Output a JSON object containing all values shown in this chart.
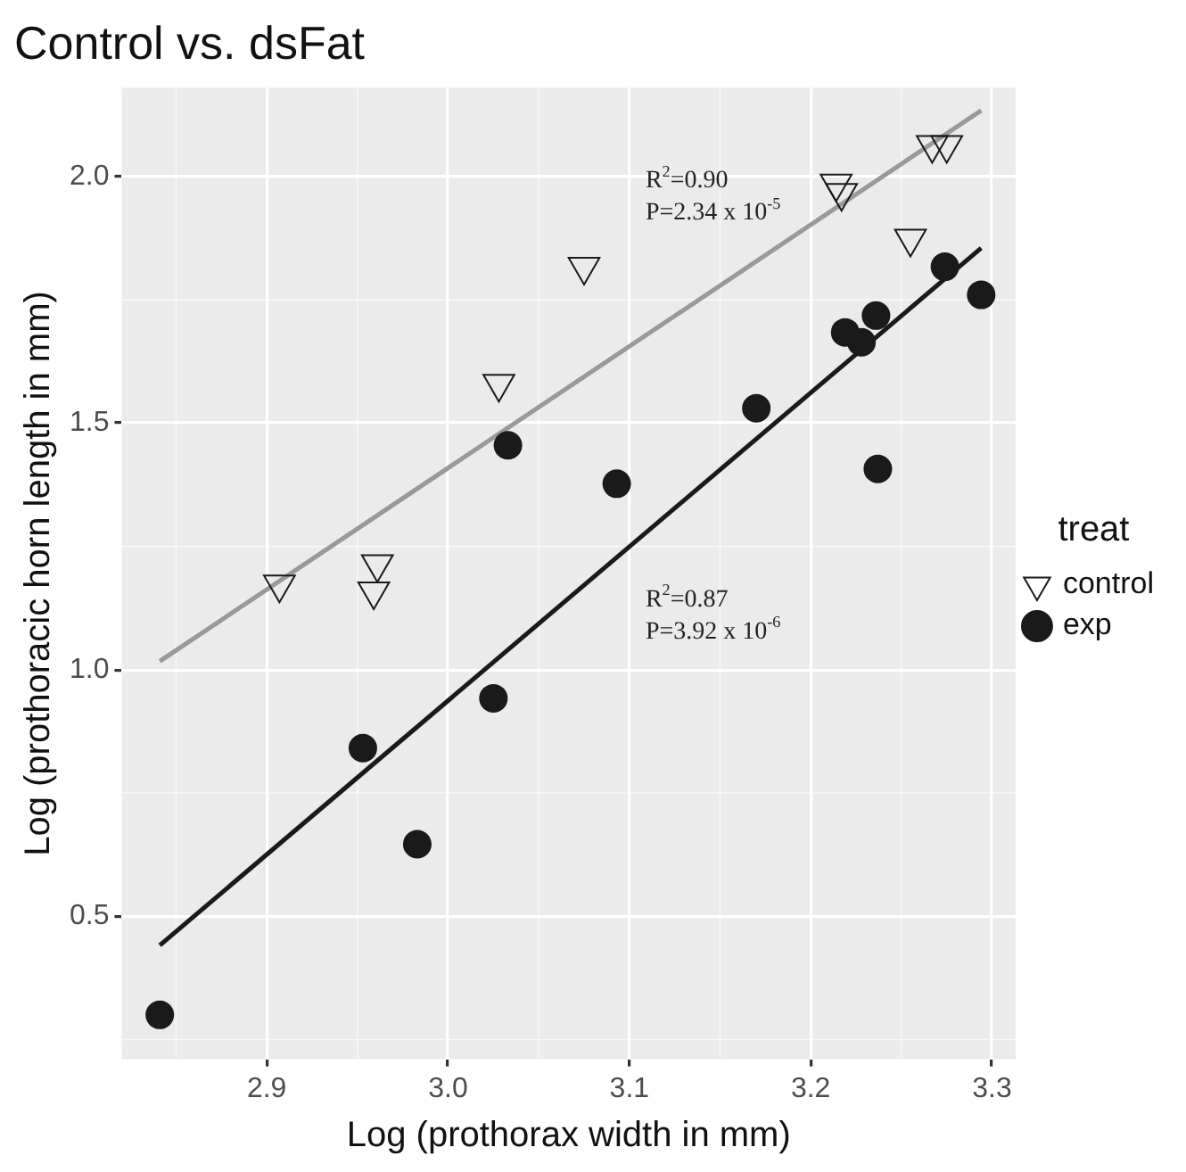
{
  "chart_data": {
    "type": "scatter",
    "title": "Control vs. dsFat",
    "xlabel": "Log (prothorax width in mm)",
    "ylabel": "Log (prothoracic horn length in mm)",
    "legend_title": "treat",
    "legend": "right",
    "grid": true,
    "xlim": [
      2.82,
      3.313
    ],
    "xticks": [
      2.9,
      {
        "value": 3,
        "label": "3.0"
      },
      3.1,
      3.2,
      3.3
    ],
    "ylim": [
      0.21,
      2.18
    ],
    "yticks": [
      0.5,
      {
        "value": 1,
        "label": "1.0"
      },
      1.5,
      {
        "value": 2,
        "label": "2.0"
      }
    ],
    "series": [
      {
        "name": "control",
        "marker": "triangle",
        "color": "#1a1a1a",
        "x": [
          3.075,
          3.028,
          3.214,
          3.217,
          3.255,
          3.267,
          3.275,
          2.961,
          2.907,
          2.959
        ],
        "values": [
          1.817,
          1.58,
          1.986,
          1.967,
          1.874,
          2.064,
          2.064,
          1.214,
          1.173,
          1.159
        ]
      },
      {
        "name": "exp",
        "marker": "circle",
        "color": "#1a1a1a",
        "x": [
          3.274,
          3.294,
          3.236,
          3.219,
          3.228,
          3.17,
          3.237,
          3.033,
          3.093,
          3.025,
          2.953,
          2.983,
          2.841
        ],
        "values": [
          1.817,
          1.76,
          1.718,
          1.684,
          1.664,
          1.53,
          1.407,
          1.455,
          1.377,
          0.942,
          0.841,
          0.646,
          0.3
        ]
      },
      {
        "type": "line",
        "marker": "none",
        "color": "#999999",
        "x": [
          2.841,
          3.294
        ],
        "values": [
          1.017,
          2.134
        ]
      },
      {
        "type": "line",
        "marker": "none",
        "color": "#1a1a1a",
        "x": [
          2.841,
          3.294
        ],
        "values": [
          0.441,
          1.855
        ]
      }
    ],
    "annotations": [
      "R$^{2}$=0.90",
      "P=2.34 x 10$^{-5}$",
      "R$^{2}$=0.87",
      "P=3.92 x 10$^{-6}$"
    ]
  }
}
